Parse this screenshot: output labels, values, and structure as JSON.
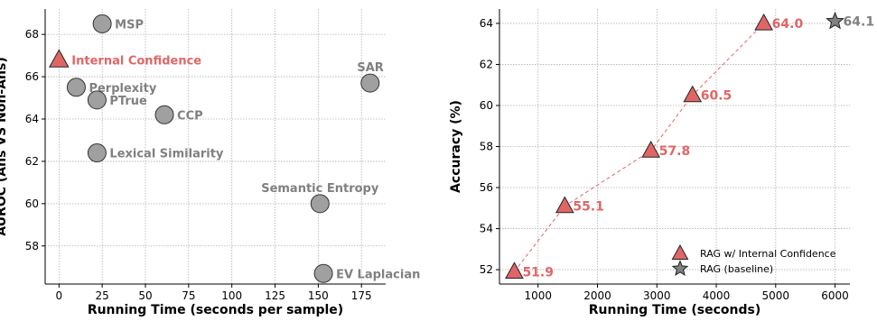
{
  "chart_data": [
    {
      "type": "scatter",
      "title": "",
      "xlabel": "Running Time (seconds per sample)",
      "ylabel": "AUROC (Ans VS Non-Ans)",
      "xlim": [
        -8,
        189
      ],
      "ylim": [
        56.2,
        69.2
      ],
      "xticks": [
        0,
        25,
        50,
        75,
        100,
        125,
        150,
        175
      ],
      "yticks": [
        58,
        60,
        62,
        64,
        66,
        68
      ],
      "grid": true,
      "points": [
        {
          "label": "MSP",
          "x": 25,
          "y": 68.5,
          "marker": "circle",
          "color": "#a0a0a0",
          "label_pos": "right"
        },
        {
          "label": "Internal Confidence",
          "x": 0,
          "y": 66.8,
          "marker": "triangle",
          "color": "#e06666",
          "label_pos": "right"
        },
        {
          "label": "Perplexity",
          "x": 10,
          "y": 65.5,
          "marker": "circle",
          "color": "#a0a0a0",
          "label_pos": "right"
        },
        {
          "label": "PTrue",
          "x": 22,
          "y": 64.9,
          "marker": "circle",
          "color": "#a0a0a0",
          "label_pos": "right"
        },
        {
          "label": "CCP",
          "x": 61,
          "y": 64.2,
          "marker": "circle",
          "color": "#a0a0a0",
          "label_pos": "right"
        },
        {
          "label": "SAR",
          "x": 180,
          "y": 65.7,
          "marker": "circle",
          "color": "#a0a0a0",
          "label_pos": "above"
        },
        {
          "label": "Lexical Similarity",
          "x": 22,
          "y": 62.4,
          "marker": "circle",
          "color": "#a0a0a0",
          "label_pos": "right"
        },
        {
          "label": "Semantic Entropy",
          "x": 151,
          "y": 60.0,
          "marker": "circle",
          "color": "#a0a0a0",
          "label_pos": "above"
        },
        {
          "label": "EV Laplacian",
          "x": 153,
          "y": 56.7,
          "marker": "circle",
          "color": "#a0a0a0",
          "label_pos": "right"
        }
      ]
    },
    {
      "type": "line",
      "title": "",
      "xlabel": "Running Time (seconds)",
      "ylabel": "Accuracy (%)",
      "xlim": [
        350,
        6250
      ],
      "ylim": [
        51.3,
        64.7
      ],
      "xticks": [
        1000,
        2000,
        3000,
        4000,
        5000,
        6000
      ],
      "yticks": [
        52,
        54,
        56,
        58,
        60,
        62,
        64
      ],
      "grid": true,
      "legend_position": "bottom-right",
      "series": [
        {
          "name": "RAG w/ Internal Confidence",
          "color": "#e06666",
          "marker": "triangle",
          "line_style": "dashed",
          "x": [
            600,
            1450,
            2900,
            3600,
            4800
          ],
          "y": [
            51.9,
            55.1,
            57.8,
            60.5,
            64.0
          ],
          "labels": [
            "51.9",
            "55.1",
            "57.8",
            "60.5",
            "64.0"
          ]
        },
        {
          "name": "RAG (baseline)",
          "color": "#808080",
          "marker": "star",
          "x": [
            6000
          ],
          "y": [
            64.1
          ],
          "labels": [
            "64.1"
          ]
        }
      ]
    }
  ]
}
